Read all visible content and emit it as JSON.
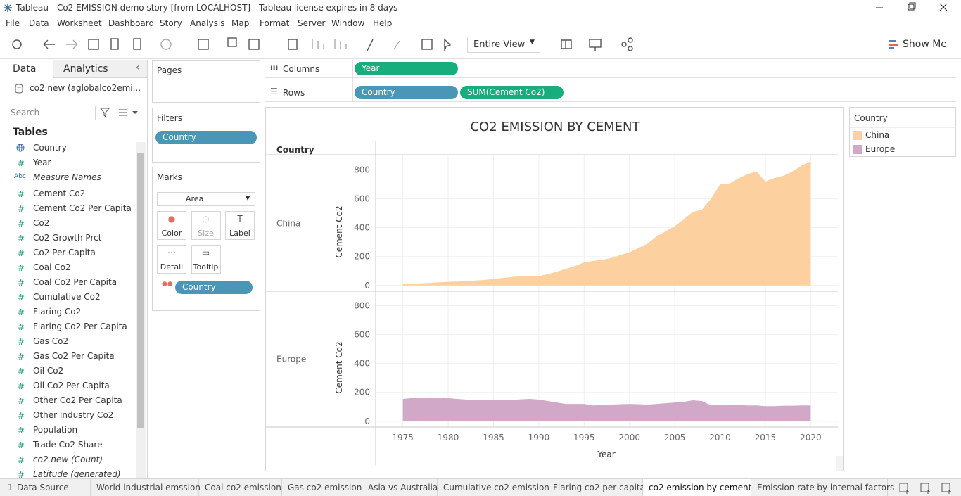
{
  "window": {
    "title": "Tableau - Co2 EMISSION demo story [from LOCALHOST] - Tableau license expires in 8 days"
  },
  "menu": [
    "File",
    "Data",
    "Worksheet",
    "Dashboard",
    "Story",
    "Analysis",
    "Map",
    "Format",
    "Server",
    "Window",
    "Help"
  ],
  "toolbar": {
    "fit": "Entire View",
    "show_me": "Show Me"
  },
  "data_pane": {
    "tabs": [
      "Data",
      "Analytics"
    ],
    "source": "co2 new (aglobalco2emi...",
    "search": "Search",
    "tables_heading": "Tables",
    "fields": [
      {
        "name": "Country"
      },
      {
        "icon": "#",
        "name": "Year"
      },
      {
        "icon": "Abc",
        "name": "Measure Names",
        "italic": true
      },
      {
        "icon": "#",
        "name": "Cement Co2"
      },
      {
        "icon": "#",
        "name": "Cement Co2 Per Capita"
      },
      {
        "icon": "#",
        "name": "Co2"
      },
      {
        "icon": "#",
        "name": "Co2 Growth Prct"
      },
      {
        "icon": "#",
        "name": "Co2 Per Capita"
      },
      {
        "icon": "#",
        "name": "Coal Co2"
      },
      {
        "icon": "#",
        "name": "Coal Co2 Per Capita"
      },
      {
        "icon": "#",
        "name": "Cumulative Co2"
      },
      {
        "icon": "#",
        "name": "Flaring Co2"
      },
      {
        "icon": "#",
        "name": "Flaring Co2 Per Capita"
      },
      {
        "icon": "#",
        "name": "Gas Co2"
      },
      {
        "icon": "#",
        "name": "Gas Co2 Per Capita"
      },
      {
        "icon": "#",
        "name": "Oil Co2"
      },
      {
        "icon": "#",
        "name": "Oil Co2 Per Capita"
      },
      {
        "icon": "#",
        "name": "Other Co2 Per Capita"
      },
      {
        "icon": "#",
        "name": "Other Industry Co2"
      },
      {
        "icon": "#",
        "name": "Population"
      },
      {
        "icon": "#",
        "name": "Trade Co2 Share"
      },
      {
        "icon": "#",
        "name": "co2 new (Count)",
        "italic": true
      },
      {
        "icon": "#",
        "name": "Latitude (generated)",
        "italic": true
      }
    ]
  },
  "shelves": {
    "pages": "Pages",
    "columns": {
      "label": "Columns",
      "pills": [
        "Year"
      ]
    },
    "rows": {
      "label": "Rows",
      "pills": [
        "Country",
        "SUM(Cement Co2)"
      ]
    },
    "filters": {
      "label": "Filters",
      "pills": [
        "Country"
      ]
    },
    "marks": {
      "label": "Marks",
      "type": "Area",
      "buttons": [
        "Color",
        "Size",
        "Label",
        "Detail",
        "Tooltip"
      ],
      "pill": "Country"
    }
  },
  "chart_data": {
    "type": "area",
    "title": "CO2 EMISSION BY CEMENT",
    "row_header": "Country",
    "y_label": "Cement Co2",
    "x_label": "Year",
    "legend_title": "Country",
    "x": [
      1975,
      1976,
      1977,
      1978,
      1979,
      1980,
      1981,
      1982,
      1983,
      1984,
      1985,
      1986,
      1987,
      1988,
      1989,
      1990,
      1991,
      1992,
      1993,
      1994,
      1995,
      1996,
      1997,
      1998,
      1999,
      2000,
      2001,
      2002,
      2003,
      2004,
      2005,
      2006,
      2007,
      2008,
      2009,
      2010,
      2011,
      2012,
      2013,
      2014,
      2015,
      2016,
      2017,
      2018,
      2019,
      2020
    ],
    "series": [
      {
        "name": "China",
        "color": "#fdd09f",
        "values": [
          10,
          12,
          15,
          18,
          22,
          25,
          27,
          30,
          34,
          38,
          45,
          52,
          58,
          65,
          65,
          65,
          78,
          95,
          115,
          135,
          160,
          170,
          178,
          190,
          210,
          230,
          260,
          290,
          340,
          375,
          410,
          460,
          510,
          525,
          600,
          700,
          705,
          740,
          770,
          790,
          720,
          745,
          760,
          790,
          830,
          860
        ]
      },
      {
        "name": "Europe",
        "color": "#d2a8c8",
        "values": [
          155,
          160,
          163,
          165,
          163,
          160,
          155,
          150,
          148,
          145,
          145,
          145,
          148,
          152,
          155,
          150,
          140,
          130,
          120,
          120,
          120,
          110,
          112,
          115,
          118,
          120,
          118,
          115,
          120,
          125,
          130,
          135,
          145,
          140,
          110,
          115,
          115,
          112,
          110,
          110,
          105,
          105,
          108,
          108,
          110,
          110
        ]
      }
    ],
    "xlim": [
      1972,
      2023
    ],
    "xticks": [
      1975,
      1980,
      1985,
      1990,
      1995,
      2000,
      2005,
      2010,
      2015,
      2020
    ],
    "ylim": [
      -40,
      900
    ],
    "yticks": [
      0,
      200,
      400,
      600,
      800
    ],
    "grid": true
  },
  "sheet_tabs": {
    "tabs": [
      "Data Source",
      "World industrial emssion",
      "Coal co2 emission",
      "Gas co2 emission",
      "Asia vs Australia",
      "Cumulative co2 emission",
      "Flaring co2 per capita",
      "co2 emission by cement",
      "Emission rate by internal factors"
    ],
    "active": 7
  }
}
